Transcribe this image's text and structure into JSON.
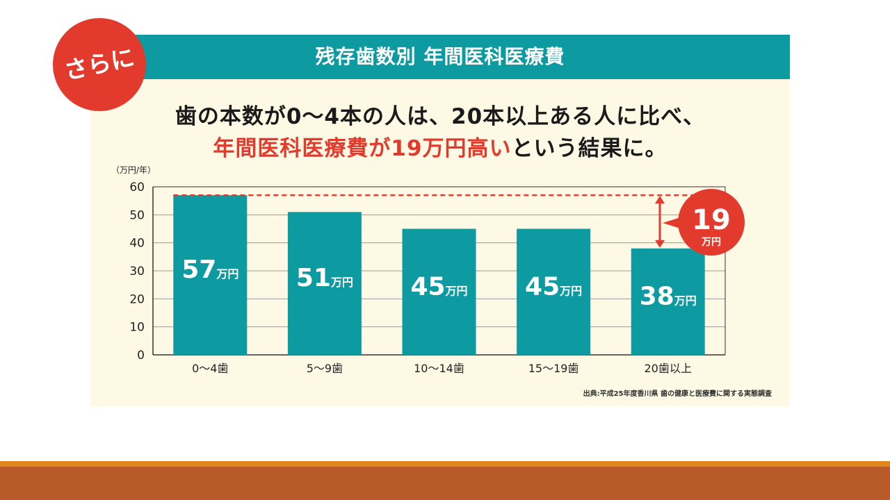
{
  "badge": {
    "text": "さらに"
  },
  "title": "残存歯数別 年間医科医療費",
  "headline": {
    "line1": "歯の本数が0～4本の人は、20本以上ある人に比べ、",
    "line2_red": "年間医科医療費が19万円高い",
    "line2_black": "という結果に。"
  },
  "source": "出典:平成25年度香川県 歯の健康と医療費に関する実態調査",
  "colors": {
    "bar": "#0d9ba1",
    "accent": "#e23b2e",
    "panel": "#fdf9e4",
    "footer": "#b85a2a"
  },
  "chart_data": {
    "type": "bar",
    "y_unit_label": "（万円/年）",
    "categories": [
      "0～4歯",
      "5～9歯",
      "10～14歯",
      "15～19歯",
      "20歯以上"
    ],
    "values": [
      57,
      51,
      45,
      45,
      38
    ],
    "value_unit": "万円",
    "ylim": [
      0,
      60
    ],
    "yticks": [
      0,
      10,
      20,
      30,
      40,
      50,
      60
    ],
    "grid": true,
    "reference_line_value": 57,
    "difference": {
      "value": "19",
      "unit": "万円"
    }
  }
}
